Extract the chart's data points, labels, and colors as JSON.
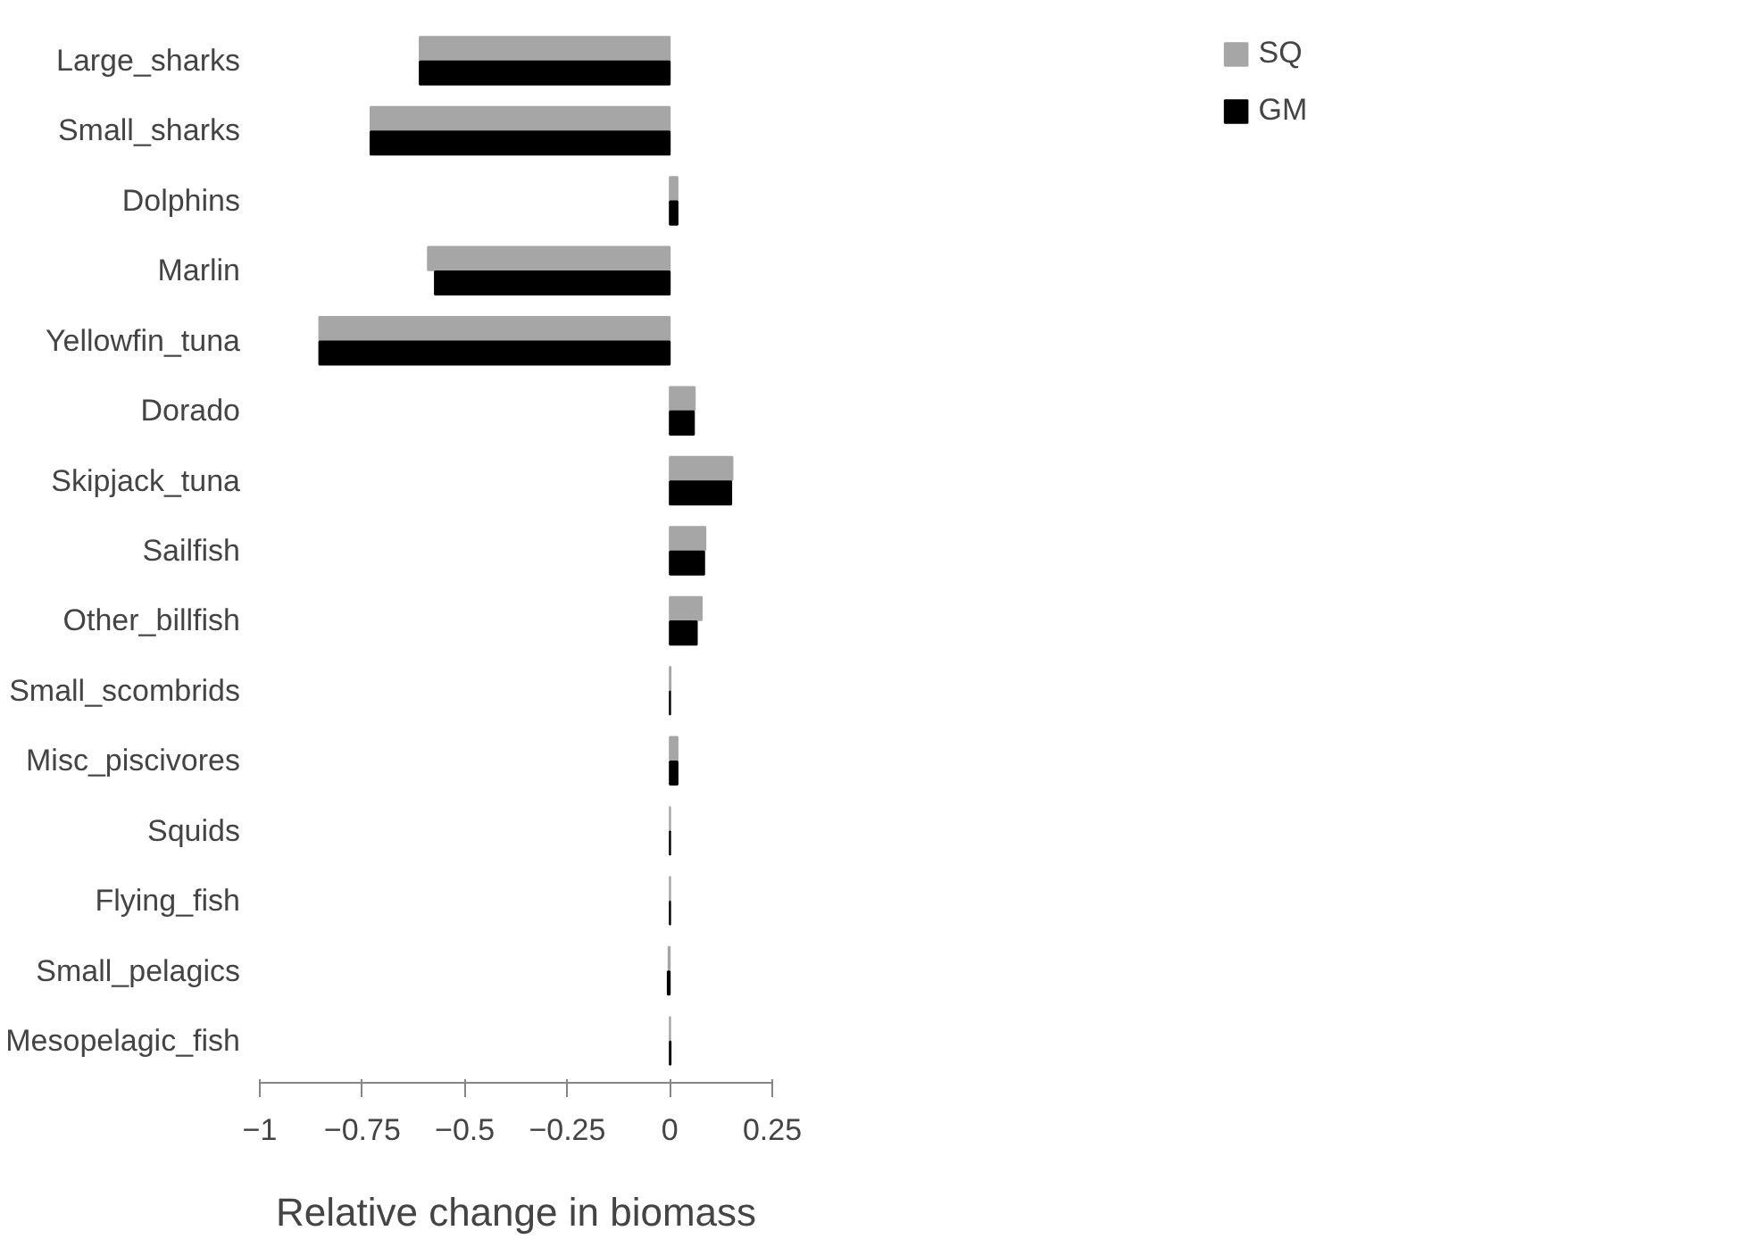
{
  "chart_data": {
    "type": "bar",
    "orientation": "horizontal",
    "xlabel": "Relative change in biomass",
    "categories": [
      "Large_sharks",
      "Small_sharks",
      "Dolphins",
      "Marlin",
      "Yellowfin_tuna",
      "Dorado",
      "Skipjack_tuna",
      "Sailfish",
      "Other_billfish",
      "Small_scombrids",
      "Misc_piscivores",
      "Squids",
      "Flying_fish",
      "Small_pelagics",
      "Mesopelagic_fish"
    ],
    "series": [
      {
        "name": "SQ",
        "color": "#a6a6a6",
        "values": [
          -0.61,
          -0.73,
          0.019,
          -0.59,
          -0.855,
          0.061,
          0.153,
          0.087,
          0.078,
          0.002,
          0.019,
          0.001,
          0.001,
          -0.003,
          0.001
        ]
      },
      {
        "name": "GM",
        "color": "#000000",
        "values": [
          -0.61,
          -0.73,
          0.019,
          -0.573,
          -0.855,
          0.059,
          0.15,
          0.084,
          0.066,
          0.001,
          0.019,
          0.001,
          0.001,
          -0.005,
          0.002
        ]
      }
    ],
    "xlim": [
      -1,
      0.25
    ],
    "xticks": [
      -1,
      -0.75,
      -0.5,
      -0.25,
      0,
      0.25
    ],
    "grid": false,
    "legend": "top right"
  }
}
